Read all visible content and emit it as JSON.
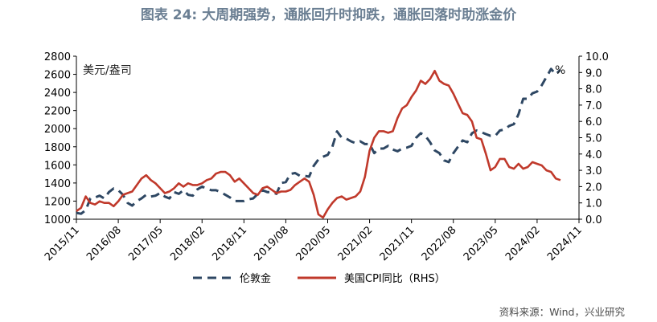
{
  "title": "图表 24: 大周期强势，通胀回升时抑跌，通胀回落时助涨金价",
  "source": "资料来源：Wind，兴业研究",
  "chart_data": {
    "type": "line",
    "left_unit": "美元/盎司",
    "right_unit": "%",
    "x_tick_labels": [
      "2015/11",
      "2016/08",
      "2017/05",
      "2018/02",
      "2018/11",
      "2019/08",
      "2020/05",
      "2021/02",
      "2021/11",
      "2022/08",
      "2023/05",
      "2024/02",
      "2024/11"
    ],
    "y_left": {
      "min": 1000,
      "max": 2800,
      "step": 200
    },
    "y_right": {
      "min": 0.0,
      "max": 10.0,
      "step": 1.0
    },
    "legend_position": "bottom",
    "series": [
      {
        "name": "伦敦金",
        "axis": "left",
        "color": "#2e4763",
        "style": "dashed",
        "start": "2015/11",
        "values": [
          1070,
          1060,
          1100,
          1230,
          1240,
          1260,
          1230,
          1300,
          1340,
          1320,
          1270,
          1180,
          1150,
          1200,
          1230,
          1270,
          1250,
          1260,
          1290,
          1250,
          1230,
          1300,
          1280,
          1320,
          1270,
          1260,
          1330,
          1360,
          1340,
          1320,
          1320,
          1300,
          1270,
          1240,
          1200,
          1200,
          1200,
          1220,
          1230,
          1280,
          1320,
          1300,
          1300,
          1280,
          1400,
          1410,
          1500,
          1510,
          1480,
          1480,
          1470,
          1590,
          1660,
          1690,
          1710,
          1800,
          1970,
          1900,
          1890,
          1860,
          1840,
          1860,
          1830,
          1830,
          1730,
          1780,
          1780,
          1810,
          1770,
          1750,
          1780,
          1790,
          1810,
          1900,
          1950,
          1920,
          1850,
          1760,
          1730,
          1650,
          1630,
          1730,
          1800,
          1870,
          1850,
          1950,
          1980,
          1960,
          1940,
          1920,
          1920,
          1980,
          1990,
          2030,
          2050,
          2160,
          2330,
          2330,
          2390,
          2410,
          2480,
          2570,
          2660,
          2600,
          2650
        ],
        "note": "monthly averages in USD per ounce, Nov 2015 – Jul 2024"
      },
      {
        "name": "美国CPI同比（RHS）",
        "axis": "right",
        "color": "#c0392b",
        "style": "solid",
        "start": "2015/11",
        "values": [
          0.5,
          0.7,
          1.4,
          1.0,
          0.9,
          1.1,
          1.0,
          1.0,
          0.8,
          1.1,
          1.5,
          1.6,
          1.7,
          2.1,
          2.5,
          2.7,
          2.4,
          2.2,
          1.9,
          1.6,
          1.7,
          1.9,
          2.2,
          2.0,
          2.2,
          2.1,
          2.1,
          2.2,
          2.4,
          2.5,
          2.8,
          2.9,
          2.9,
          2.7,
          2.3,
          2.5,
          2.2,
          1.9,
          1.6,
          1.5,
          1.9,
          2.0,
          1.8,
          1.6,
          1.7,
          1.7,
          1.8,
          2.1,
          2.3,
          2.5,
          2.3,
          1.5,
          0.3,
          0.1,
          0.6,
          1.0,
          1.3,
          1.4,
          1.2,
          1.3,
          1.4,
          1.7,
          2.6,
          4.2,
          5.0,
          5.4,
          5.4,
          5.3,
          5.4,
          6.2,
          6.8,
          7.0,
          7.5,
          7.9,
          8.5,
          8.3,
          8.6,
          9.1,
          8.5,
          8.3,
          8.2,
          7.7,
          7.1,
          6.5,
          6.4,
          6.0,
          5.0,
          4.9,
          4.0,
          3.0,
          3.2,
          3.7,
          3.7,
          3.2,
          3.1,
          3.4,
          3.1,
          3.2,
          3.5,
          3.4,
          3.3,
          3.0,
          2.9,
          2.5,
          2.4
        ],
        "note": "monthly YoY %, Nov 2015 – Jul 2024"
      }
    ]
  }
}
